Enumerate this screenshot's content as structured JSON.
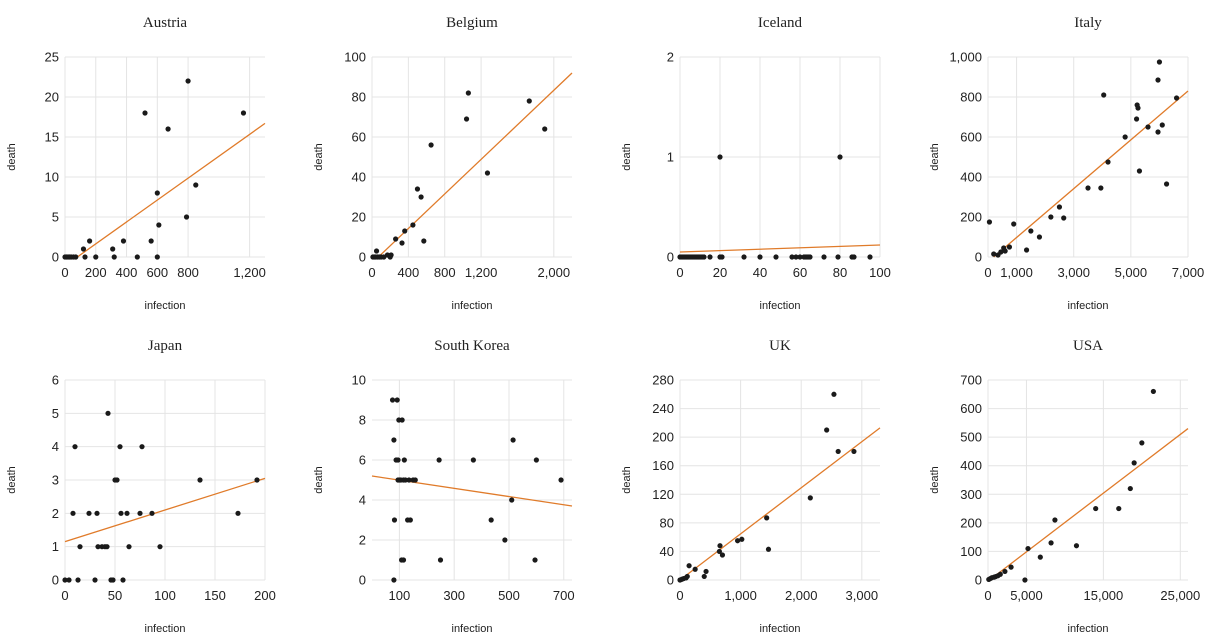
{
  "colors": {
    "point": "#1a1a1a",
    "trend": "#e07b2a",
    "grid": "#e4e4e4",
    "text": "#222222"
  },
  "chart_data": [
    {
      "type": "scatter",
      "title": "Austria",
      "xlabel": "infection",
      "ylabel": "death",
      "xlim": [
        0,
        1300
      ],
      "ylim": [
        0,
        25
      ],
      "xticks": [
        0,
        200,
        400,
        600,
        800,
        1200
      ],
      "xtick_labels": [
        "0",
        "200",
        "400",
        "600",
        "800",
        "1,200"
      ],
      "yticks": [
        0,
        5,
        10,
        15,
        20,
        25
      ],
      "ytick_labels": [
        "0",
        "5",
        "10",
        "15",
        "20",
        "25"
      ],
      "grid": true,
      "points": [
        [
          0,
          0
        ],
        [
          10,
          0
        ],
        [
          20,
          0
        ],
        [
          30,
          0
        ],
        [
          40,
          0
        ],
        [
          55,
          0
        ],
        [
          70,
          0
        ],
        [
          130,
          0
        ],
        [
          120,
          1
        ],
        [
          160,
          2
        ],
        [
          200,
          0
        ],
        [
          320,
          0
        ],
        [
          310,
          1
        ],
        [
          380,
          2
        ],
        [
          470,
          0
        ],
        [
          520,
          18
        ],
        [
          560,
          2
        ],
        [
          600,
          0
        ],
        [
          600,
          8
        ],
        [
          610,
          4
        ],
        [
          670,
          16
        ],
        [
          790,
          5
        ],
        [
          800,
          22
        ],
        [
          850,
          9
        ],
        [
          1160,
          18
        ]
      ],
      "trend": [
        [
          80,
          0
        ],
        [
          1300,
          16.7
        ]
      ]
    },
    {
      "type": "scatter",
      "title": "Belgium",
      "xlabel": "infection",
      "ylabel": "death",
      "xlim": [
        0,
        2200
      ],
      "ylim": [
        0,
        100
      ],
      "xticks": [
        0,
        400,
        800,
        1200,
        2000
      ],
      "xtick_labels": [
        "0",
        "400",
        "800",
        "1,200",
        "2,000"
      ],
      "yticks": [
        0,
        20,
        40,
        60,
        80,
        100
      ],
      "ytick_labels": [
        "0",
        "20",
        "40",
        "60",
        "80",
        "100"
      ],
      "grid": true,
      "points": [
        [
          10,
          0
        ],
        [
          25,
          0
        ],
        [
          40,
          0
        ],
        [
          50,
          3
        ],
        [
          60,
          0
        ],
        [
          80,
          0
        ],
        [
          100,
          0
        ],
        [
          130,
          0
        ],
        [
          170,
          1
        ],
        [
          200,
          0
        ],
        [
          210,
          1
        ],
        [
          260,
          9
        ],
        [
          330,
          7
        ],
        [
          360,
          13
        ],
        [
          450,
          16
        ],
        [
          500,
          34
        ],
        [
          540,
          30
        ],
        [
          570,
          8
        ],
        [
          650,
          56
        ],
        [
          1040,
          69
        ],
        [
          1060,
          82
        ],
        [
          1270,
          42
        ],
        [
          1730,
          78
        ],
        [
          1900,
          64
        ]
      ],
      "trend": [
        [
          70,
          0
        ],
        [
          2200,
          92
        ]
      ]
    },
    {
      "type": "scatter",
      "title": "Iceland",
      "xlabel": "infection",
      "ylabel": "death",
      "xlim": [
        0,
        100
      ],
      "ylim": [
        0,
        2
      ],
      "xticks": [
        0,
        20,
        40,
        60,
        80,
        100
      ],
      "xtick_labels": [
        "0",
        "20",
        "40",
        "60",
        "80",
        "100"
      ],
      "yticks": [
        0,
        1,
        2
      ],
      "ytick_labels": [
        "0",
        "1",
        "2"
      ],
      "grid": true,
      "points": [
        [
          0,
          0
        ],
        [
          1,
          0
        ],
        [
          2,
          0
        ],
        [
          3,
          0
        ],
        [
          4,
          0
        ],
        [
          5,
          0
        ],
        [
          6,
          0
        ],
        [
          7,
          0
        ],
        [
          8,
          0
        ],
        [
          9,
          0
        ],
        [
          10,
          0
        ],
        [
          11,
          0
        ],
        [
          12,
          0
        ],
        [
          15,
          0
        ],
        [
          20,
          0
        ],
        [
          21,
          0
        ],
        [
          20,
          1
        ],
        [
          32,
          0
        ],
        [
          40,
          0
        ],
        [
          48,
          0
        ],
        [
          56,
          0
        ],
        [
          58,
          0
        ],
        [
          60,
          0
        ],
        [
          62,
          0
        ],
        [
          63,
          0
        ],
        [
          64,
          0
        ],
        [
          65,
          0
        ],
        [
          72,
          0
        ],
        [
          79,
          0
        ],
        [
          80,
          1
        ],
        [
          86,
          0
        ],
        [
          87,
          0
        ],
        [
          95,
          0
        ]
      ],
      "trend": [
        [
          0,
          0.05
        ],
        [
          100,
          0.12
        ]
      ]
    },
    {
      "type": "scatter",
      "title": "Italy",
      "xlabel": "infection",
      "ylabel": "death",
      "xlim": [
        0,
        7000
      ],
      "ylim": [
        0,
        1000
      ],
      "xticks": [
        0,
        1000,
        3000,
        5000,
        7000
      ],
      "xtick_labels": [
        "0",
        "1,000",
        "3,000",
        "5,000",
        "7,000"
      ],
      "yticks": [
        0,
        200,
        400,
        600,
        800,
        1000
      ],
      "ytick_labels": [
        "0",
        "200",
        "400",
        "600",
        "800",
        "1,000"
      ],
      "grid": true,
      "points": [
        [
          50,
          175
        ],
        [
          200,
          15
        ],
        [
          350,
          10
        ],
        [
          450,
          25
        ],
        [
          550,
          45
        ],
        [
          600,
          30
        ],
        [
          750,
          50
        ],
        [
          900,
          165
        ],
        [
          1350,
          35
        ],
        [
          1500,
          130
        ],
        [
          1800,
          100
        ],
        [
          2200,
          200
        ],
        [
          2500,
          250
        ],
        [
          2650,
          195
        ],
        [
          3500,
          345
        ],
        [
          3950,
          345
        ],
        [
          4050,
          810
        ],
        [
          4200,
          475
        ],
        [
          4800,
          600
        ],
        [
          5200,
          690
        ],
        [
          5220,
          760
        ],
        [
          5250,
          745
        ],
        [
          5300,
          430
        ],
        [
          5600,
          650
        ],
        [
          5950,
          625
        ],
        [
          5950,
          885
        ],
        [
          6000,
          975
        ],
        [
          6100,
          660
        ],
        [
          6250,
          365
        ],
        [
          6600,
          795
        ]
      ],
      "trend": [
        [
          200,
          0
        ],
        [
          7000,
          830
        ]
      ]
    },
    {
      "type": "scatter",
      "title": "Japan",
      "xlabel": "infection",
      "ylabel": "death",
      "xlim": [
        0,
        200
      ],
      "ylim": [
        0,
        6
      ],
      "xticks": [
        0,
        50,
        100,
        150,
        200
      ],
      "xtick_labels": [
        "0",
        "50",
        "100",
        "150",
        "200"
      ],
      "yticks": [
        0,
        1,
        2,
        3,
        4,
        5,
        6
      ],
      "ytick_labels": [
        "0",
        "1",
        "2",
        "3",
        "4",
        "5",
        "6"
      ],
      "grid": true,
      "points": [
        [
          0,
          0
        ],
        [
          4,
          0
        ],
        [
          8,
          2
        ],
        [
          10,
          4
        ],
        [
          13,
          0
        ],
        [
          15,
          1
        ],
        [
          24,
          2
        ],
        [
          30,
          0
        ],
        [
          32,
          2
        ],
        [
          33,
          1
        ],
        [
          37,
          1
        ],
        [
          40,
          1
        ],
        [
          42,
          1
        ],
        [
          43,
          5
        ],
        [
          46,
          0
        ],
        [
          48,
          0
        ],
        [
          50,
          3
        ],
        [
          52,
          3
        ],
        [
          55,
          4
        ],
        [
          56,
          2
        ],
        [
          58,
          0
        ],
        [
          62,
          2
        ],
        [
          64,
          1
        ],
        [
          75,
          2
        ],
        [
          77,
          4
        ],
        [
          87,
          2
        ],
        [
          95,
          1
        ],
        [
          135,
          3
        ],
        [
          173,
          2
        ],
        [
          192,
          3
        ]
      ],
      "trend": [
        [
          0,
          1.15
        ],
        [
          200,
          3.05
        ]
      ]
    },
    {
      "type": "scatter",
      "title": "South Korea",
      "xlabel": "infection",
      "ylabel": "death",
      "xlim": [
        0,
        730
      ],
      "ylim": [
        0,
        10
      ],
      "xticks": [
        100,
        300,
        500,
        700
      ],
      "xtick_labels": [
        "100",
        "300",
        "500",
        "700"
      ],
      "yticks": [
        0,
        2,
        4,
        6,
        8,
        10
      ],
      "ytick_labels": [
        "0",
        "2",
        "4",
        "6",
        "8",
        "10"
      ],
      "grid": true,
      "points": [
        [
          75,
          9
        ],
        [
          80,
          0
        ],
        [
          80,
          7
        ],
        [
          82,
          3
        ],
        [
          88,
          6
        ],
        [
          92,
          9
        ],
        [
          95,
          6
        ],
        [
          95,
          5
        ],
        [
          98,
          8
        ],
        [
          100,
          5
        ],
        [
          105,
          5
        ],
        [
          108,
          1
        ],
        [
          110,
          8
        ],
        [
          115,
          5
        ],
        [
          115,
          1
        ],
        [
          118,
          6
        ],
        [
          122,
          5
        ],
        [
          130,
          3
        ],
        [
          135,
          5
        ],
        [
          140,
          3
        ],
        [
          150,
          5
        ],
        [
          158,
          5
        ],
        [
          245,
          6
        ],
        [
          250,
          1
        ],
        [
          370,
          6
        ],
        [
          435,
          3
        ],
        [
          485,
          2
        ],
        [
          510,
          4
        ],
        [
          515,
          7
        ],
        [
          595,
          1
        ],
        [
          600,
          6
        ],
        [
          690,
          5
        ]
      ],
      "trend": [
        [
          0,
          5.2
        ],
        [
          730,
          3.7
        ]
      ]
    },
    {
      "type": "scatter",
      "title": "UK",
      "xlabel": "infection",
      "ylabel": "death",
      "xlim": [
        0,
        3300
      ],
      "ylim": [
        0,
        280
      ],
      "xticks": [
        0,
        1000,
        2000,
        3000
      ],
      "xtick_labels": [
        "0",
        "1,000",
        "2,000",
        "3,000"
      ],
      "yticks": [
        0,
        40,
        80,
        120,
        160,
        200,
        240,
        280
      ],
      "ytick_labels": [
        "0",
        "40",
        "80",
        "120",
        "160",
        "200",
        "240",
        "280"
      ],
      "grid": true,
      "points": [
        [
          0,
          0
        ],
        [
          30,
          1
        ],
        [
          60,
          2
        ],
        [
          100,
          3
        ],
        [
          120,
          5
        ],
        [
          150,
          20
        ],
        [
          250,
          15
        ],
        [
          400,
          5
        ],
        [
          430,
          12
        ],
        [
          650,
          40
        ],
        [
          660,
          48
        ],
        [
          700,
          35
        ],
        [
          950,
          55
        ],
        [
          1020,
          57
        ],
        [
          1430,
          87
        ],
        [
          1460,
          43
        ],
        [
          2150,
          115
        ],
        [
          2420,
          210
        ],
        [
          2540,
          260
        ],
        [
          2610,
          180
        ],
        [
          2870,
          180
        ]
      ],
      "trend": [
        [
          0,
          0
        ],
        [
          3300,
          213
        ]
      ]
    },
    {
      "type": "scatter",
      "title": "USA",
      "xlabel": "infection",
      "ylabel": "death",
      "xlim": [
        0,
        26000
      ],
      "ylim": [
        0,
        700
      ],
      "xticks": [
        0,
        5000,
        15000,
        25000
      ],
      "xtick_labels": [
        "0",
        "5,000",
        "15,000",
        "25,000"
      ],
      "yticks": [
        0,
        100,
        200,
        300,
        400,
        500,
        600,
        700
      ],
      "ytick_labels": [
        "0",
        "100",
        "200",
        "300",
        "400",
        "500",
        "600",
        "700"
      ],
      "grid": true,
      "points": [
        [
          100,
          2
        ],
        [
          300,
          5
        ],
        [
          500,
          8
        ],
        [
          800,
          10
        ],
        [
          1000,
          12
        ],
        [
          1300,
          15
        ],
        [
          1600,
          20
        ],
        [
          2200,
          30
        ],
        [
          3000,
          45
        ],
        [
          4800,
          0
        ],
        [
          5200,
          110
        ],
        [
          6800,
          80
        ],
        [
          8200,
          130
        ],
        [
          8700,
          210
        ],
        [
          11500,
          120
        ],
        [
          14000,
          250
        ],
        [
          17000,
          250
        ],
        [
          18500,
          320
        ],
        [
          19000,
          410
        ],
        [
          20000,
          480
        ],
        [
          21500,
          660
        ]
      ],
      "trend": [
        [
          200,
          0
        ],
        [
          26000,
          530
        ]
      ]
    }
  ]
}
